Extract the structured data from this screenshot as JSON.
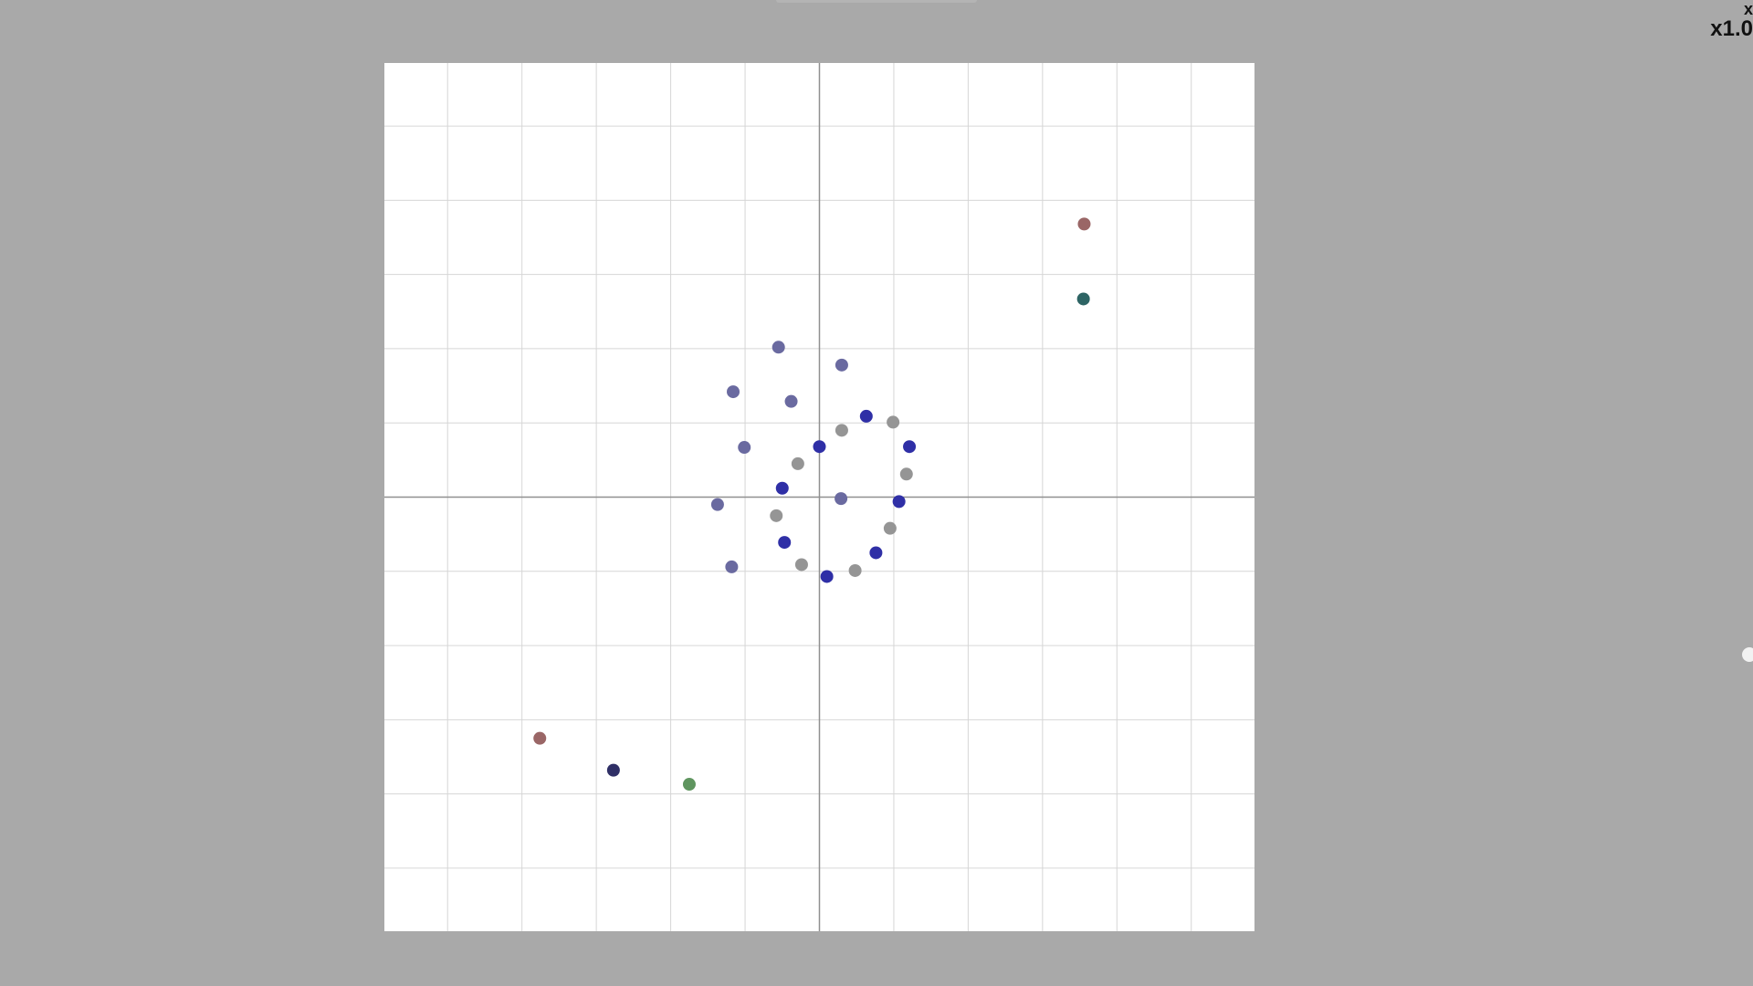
{
  "toolbar": {
    "close_label": "x",
    "zoom_label": "x1.0"
  },
  "colors": {
    "background": "#a9a9a9",
    "plot_background": "#ffffff",
    "grid": "#d6d6d6",
    "axis": "#909090",
    "slate": "#6a6aa0",
    "blue": "#2f2fa6",
    "gray": "#959595",
    "rose": "#9a6666",
    "teal": "#2d6464",
    "navy": "#2f2f66",
    "green": "#5f955f"
  },
  "chart_data": {
    "type": "scatter",
    "xlim": [
      -5.85,
      5.85
    ],
    "ylim": [
      -5.85,
      5.85
    ],
    "grid_step": 1,
    "grid": true,
    "axes": "through-origin",
    "points": [
      {
        "x": -0.55,
        "y": 2.02,
        "color": "slate"
      },
      {
        "x": 0.3,
        "y": 1.78,
        "color": "slate"
      },
      {
        "x": -1.16,
        "y": 1.42,
        "color": "slate"
      },
      {
        "x": -0.38,
        "y": 1.29,
        "color": "slate"
      },
      {
        "x": -1.01,
        "y": 0.67,
        "color": "slate"
      },
      {
        "x": -1.37,
        "y": -0.1,
        "color": "slate"
      },
      {
        "x": 0.29,
        "y": -0.02,
        "color": "slate"
      },
      {
        "x": -1.18,
        "y": -0.94,
        "color": "slate"
      },
      {
        "x": 0.63,
        "y": 1.09,
        "color": "blue"
      },
      {
        "x": 0.0,
        "y": 0.68,
        "color": "blue"
      },
      {
        "x": 1.21,
        "y": 0.68,
        "color": "blue"
      },
      {
        "x": -0.5,
        "y": 0.12,
        "color": "blue"
      },
      {
        "x": 1.07,
        "y": -0.06,
        "color": "blue"
      },
      {
        "x": -0.47,
        "y": -0.61,
        "color": "blue"
      },
      {
        "x": 0.76,
        "y": -0.75,
        "color": "blue"
      },
      {
        "x": 0.1,
        "y": -1.07,
        "color": "blue"
      },
      {
        "x": 0.99,
        "y": 1.01,
        "color": "gray"
      },
      {
        "x": 0.3,
        "y": 0.9,
        "color": "gray"
      },
      {
        "x": -0.29,
        "y": 0.45,
        "color": "gray"
      },
      {
        "x": 1.17,
        "y": 0.31,
        "color": "gray"
      },
      {
        "x": -0.58,
        "y": -0.25,
        "color": "gray"
      },
      {
        "x": 0.95,
        "y": -0.42,
        "color": "gray"
      },
      {
        "x": -0.24,
        "y": -0.91,
        "color": "gray"
      },
      {
        "x": 0.48,
        "y": -0.99,
        "color": "gray"
      },
      {
        "x": 3.56,
        "y": 3.68,
        "color": "rose"
      },
      {
        "x": 3.55,
        "y": 2.67,
        "color": "teal"
      },
      {
        "x": -3.76,
        "y": -3.25,
        "color": "rose"
      },
      {
        "x": -2.77,
        "y": -3.68,
        "color": "navy"
      },
      {
        "x": -1.75,
        "y": -3.87,
        "color": "green"
      }
    ]
  }
}
